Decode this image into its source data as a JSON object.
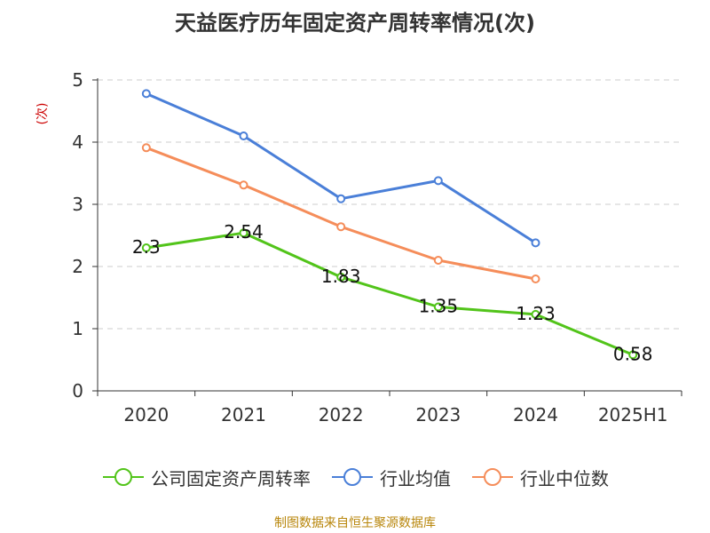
{
  "title": "天益医疗历年固定资产周转率情况(次)",
  "ylabel": "(次)",
  "source": "制图数据来自恒生聚源数据库",
  "chart_data": {
    "type": "line",
    "categories": [
      "2020",
      "2021",
      "2022",
      "2023",
      "2024",
      "2025H1"
    ],
    "ylim": [
      0,
      5
    ],
    "yticks": [
      0,
      1,
      2,
      3,
      4,
      5
    ],
    "grid": true,
    "legend_position": "bottom",
    "series": [
      {
        "name": "公司固定资产周转率",
        "color": "#52c41a",
        "values": [
          2.3,
          2.54,
          1.83,
          1.35,
          1.23,
          0.58
        ],
        "labels": [
          "2.3",
          "2.54",
          "1.83",
          "1.35",
          "1.23",
          "0.58"
        ]
      },
      {
        "name": "行业均值",
        "color": "#4a7fd8",
        "values": [
          4.78,
          4.1,
          3.09,
          3.38,
          2.38,
          null
        ]
      },
      {
        "name": "行业中位数",
        "color": "#f58d5a",
        "values": [
          3.91,
          3.31,
          2.64,
          2.1,
          1.8,
          null
        ]
      }
    ]
  }
}
